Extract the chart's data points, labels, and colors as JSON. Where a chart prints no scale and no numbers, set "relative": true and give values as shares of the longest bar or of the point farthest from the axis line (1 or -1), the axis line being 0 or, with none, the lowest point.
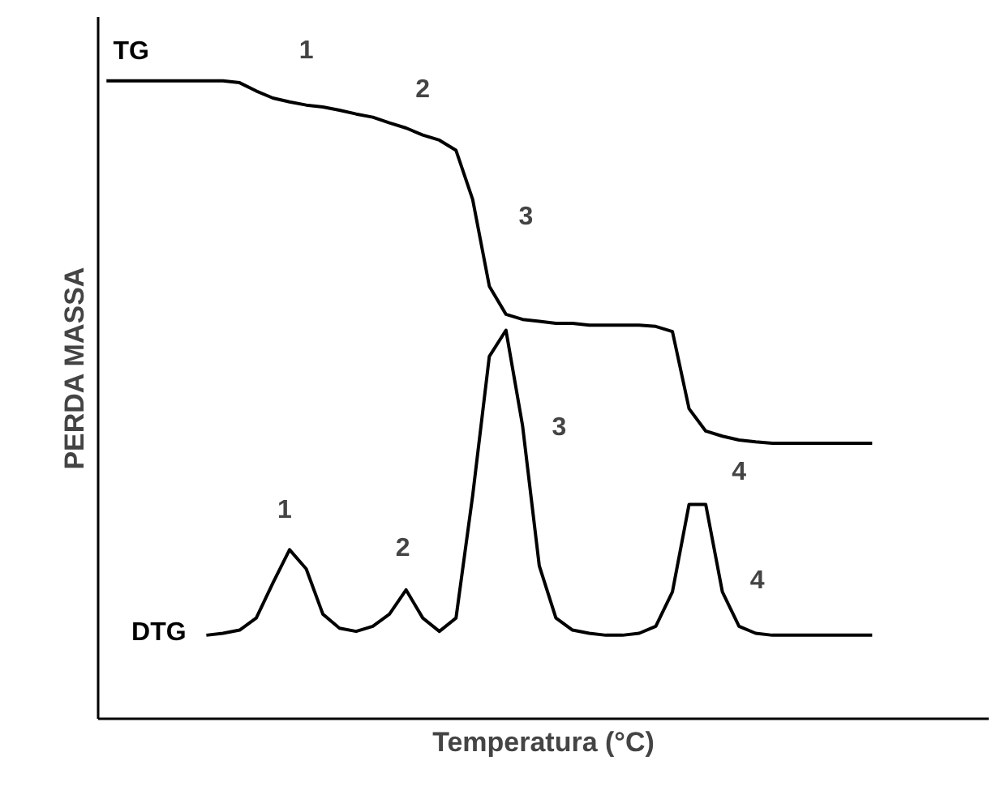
{
  "chart_data": {
    "type": "line",
    "relative": true,
    "xlabel": "Temperatura (°C)",
    "ylabel": "PERDA MASSA",
    "categories": [
      null,
      null,
      null,
      null,
      null,
      null,
      null,
      null,
      null,
      null,
      null,
      null,
      null,
      null,
      null,
      null,
      null,
      null,
      null,
      null,
      null,
      null,
      null,
      null,
      null,
      null,
      null,
      null,
      null,
      null,
      null,
      null,
      null,
      null,
      null,
      null,
      null,
      null,
      null,
      null,
      null,
      null,
      null,
      null,
      null,
      null,
      null
    ],
    "series": [
      {
        "name": "TG",
        "color": "#000000",
        "values": [
          1.0,
          1.0,
          1.0,
          1.0,
          1.0,
          1.0,
          1.0,
          1.0,
          0.997,
          0.984,
          0.973,
          0.967,
          0.962,
          0.959,
          0.954,
          0.948,
          0.943,
          0.934,
          0.926,
          0.915,
          0.907,
          0.891,
          0.814,
          0.678,
          0.634,
          0.626,
          0.623,
          0.62,
          0.62,
          0.617,
          0.617,
          0.617,
          0.617,
          0.615,
          0.607,
          0.486,
          0.451,
          0.443,
          0.437,
          0.434,
          0.432,
          0.432,
          0.432,
          0.432,
          0.432,
          0.432,
          0.432
        ]
      },
      {
        "name": "DTG",
        "color": "#000000",
        "values": [
          null,
          null,
          null,
          null,
          null,
          null,
          0.131,
          0.134,
          0.139,
          0.158,
          0.213,
          0.265,
          0.235,
          0.164,
          0.142,
          0.137,
          0.145,
          0.164,
          0.202,
          0.158,
          0.137,
          0.158,
          0.35,
          0.568,
          0.609,
          0.459,
          0.24,
          0.158,
          0.139,
          0.134,
          0.131,
          0.131,
          0.134,
          0.145,
          0.199,
          0.336,
          0.336,
          0.199,
          0.145,
          0.134,
          0.131,
          0.131,
          0.131,
          0.131,
          0.131,
          0.131,
          0.131
        ]
      }
    ],
    "annotations": [
      "1",
      "2",
      "3",
      "4",
      "1",
      "2",
      "3",
      "4"
    ],
    "marker": "none",
    "line_style": "solid",
    "legend": false
  }
}
